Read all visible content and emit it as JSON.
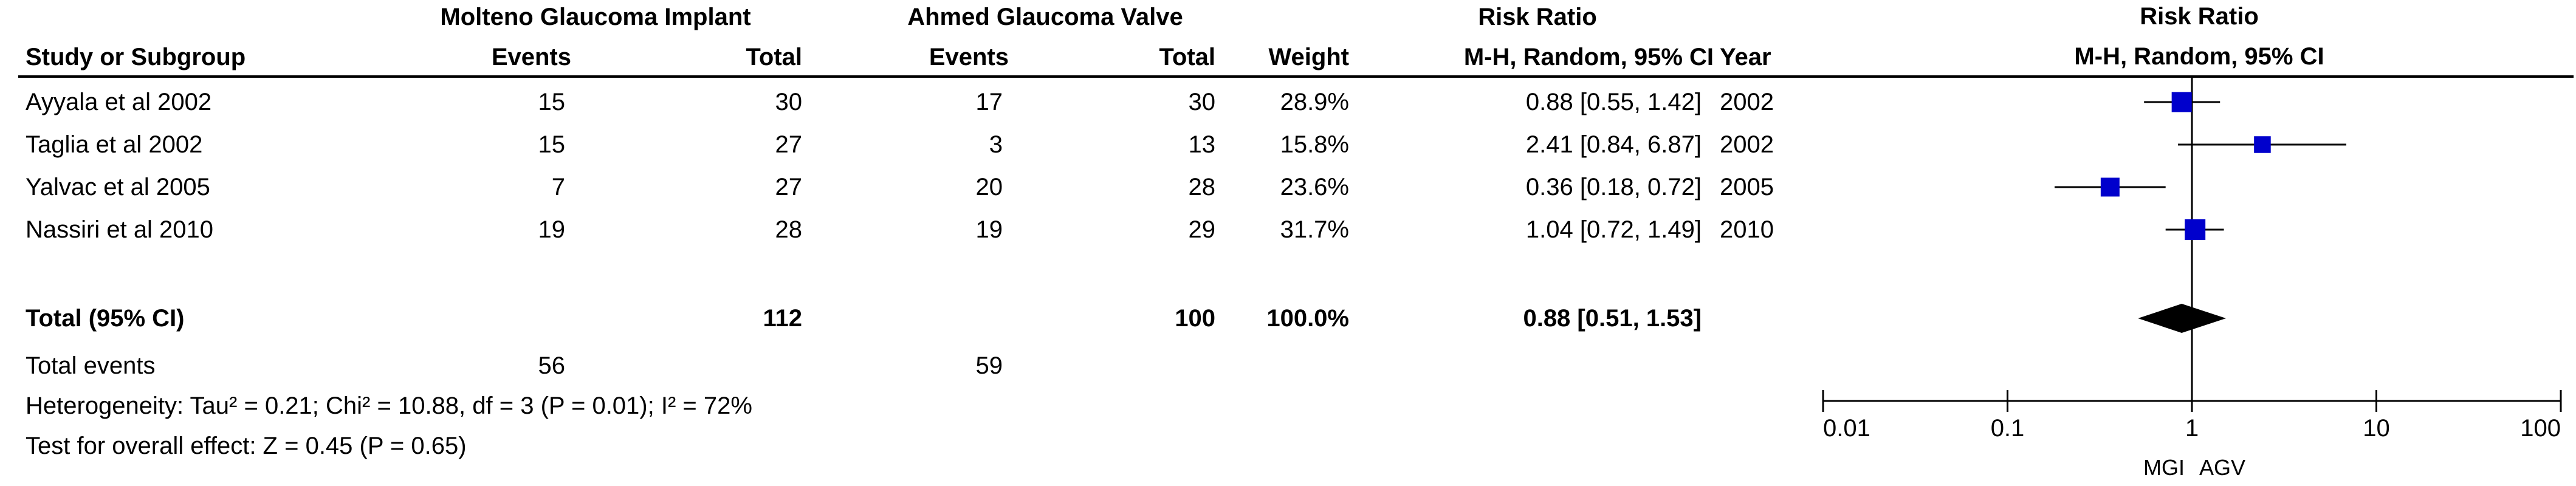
{
  "groups": {
    "experimental": "Molteno Glaucoma Implant",
    "control": "Ahmed Glaucoma Valve"
  },
  "header": {
    "risk_ratio": "Risk Ratio",
    "study": "Study or Subgroup",
    "events": "Events",
    "total": "Total",
    "weight": "Weight",
    "method": "M-H, Random, 95% CI",
    "year": "Year",
    "plot_title": "Risk Ratio",
    "plot_method": "M-H, Random, 95% CI"
  },
  "studies": [
    {
      "name": "Ayyala et al 2002",
      "e_events": "15",
      "e_total": "30",
      "c_events": "17",
      "c_total": "30",
      "weight": "28.9%",
      "ci": "0.88 [0.55, 1.42]",
      "year": "2002"
    },
    {
      "name": "Taglia et al 2002",
      "e_events": "15",
      "e_total": "27",
      "c_events": "3",
      "c_total": "13",
      "weight": "15.8%",
      "ci": "2.41 [0.84, 6.87]",
      "year": "2002"
    },
    {
      "name": "Yalvac et al 2005",
      "e_events": "7",
      "e_total": "27",
      "c_events": "20",
      "c_total": "28",
      "weight": "23.6%",
      "ci": "0.36 [0.18, 0.72]",
      "year": "2005"
    },
    {
      "name": "Nassiri et al 2010",
      "e_events": "19",
      "e_total": "28",
      "c_events": "19",
      "c_total": "29",
      "weight": "31.7%",
      "ci": "1.04 [0.72, 1.49]",
      "year": "2010"
    }
  ],
  "total": {
    "label": "Total (95% CI)",
    "e_total": "112",
    "c_total": "100",
    "weight": "100.0%",
    "ci": "0.88 [0.51, 1.53]"
  },
  "total_events": {
    "label": "Total events",
    "e_events": "56",
    "c_events": "59"
  },
  "heterogeneity": "Heterogeneity: Tau² = 0.21; Chi² = 10.88, df = 3 (P = 0.01); I² = 72%",
  "overall_effect": "Test for overall effect: Z = 0.45 (P = 0.65)",
  "chart_data": {
    "type": "forest",
    "scale": "log",
    "xlim": [
      0.01,
      100
    ],
    "ticks": [
      0.01,
      0.1,
      1,
      10,
      100
    ],
    "tick_labels": [
      "0.01",
      "0.1",
      "1",
      "10",
      "100"
    ],
    "favours_left": "MGI",
    "favours_right": "AGV",
    "marker_color": "#0000cc",
    "studies": [
      {
        "name": "Ayyala et al 2002",
        "estimate": 0.88,
        "lower": 0.55,
        "upper": 1.42,
        "weight": 28.9
      },
      {
        "name": "Taglia et al 2002",
        "estimate": 2.41,
        "lower": 0.84,
        "upper": 6.87,
        "weight": 15.8
      },
      {
        "name": "Yalvac et al 2005",
        "estimate": 0.36,
        "lower": 0.18,
        "upper": 0.72,
        "weight": 23.6
      },
      {
        "name": "Nassiri et al 2010",
        "estimate": 1.04,
        "lower": 0.72,
        "upper": 1.49,
        "weight": 31.7
      }
    ],
    "pooled": {
      "estimate": 0.88,
      "lower": 0.51,
      "upper": 1.53
    }
  }
}
